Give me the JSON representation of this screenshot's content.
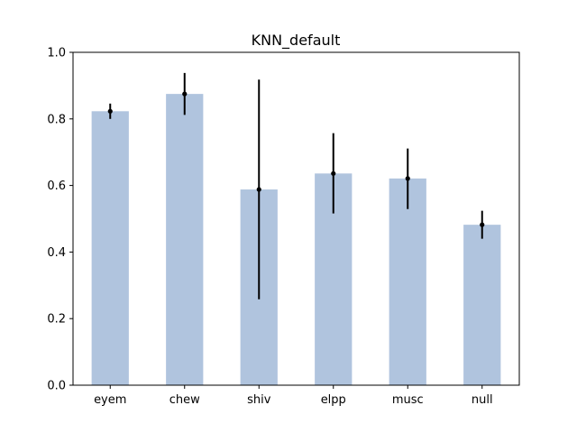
{
  "chart_data": {
    "type": "bar",
    "title": "KNN_default",
    "xlabel": "",
    "ylabel": "",
    "categories": [
      "eyem",
      "chew",
      "shiv",
      "elpp",
      "musc",
      "null"
    ],
    "values": [
      0.823,
      0.875,
      0.588,
      0.636,
      0.621,
      0.482
    ],
    "error_low": [
      0.8,
      0.812,
      0.258,
      0.516,
      0.529,
      0.44
    ],
    "error_high": [
      0.846,
      0.938,
      0.918,
      0.757,
      0.711,
      0.524
    ],
    "ylim": [
      0,
      1.0
    ],
    "yticks": [
      "0.0",
      "0.2",
      "0.4",
      "0.6",
      "0.8",
      "1.0"
    ],
    "grid": false,
    "legend": false,
    "colors": {
      "bar": "#b0c4de",
      "error": "#000000",
      "axis": "#000000"
    }
  }
}
